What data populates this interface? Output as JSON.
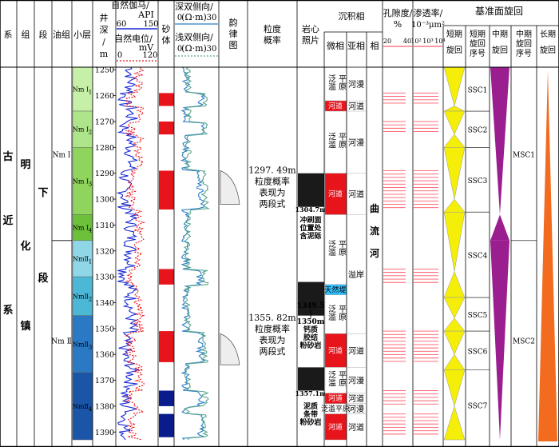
{
  "headers": {
    "xi": "系",
    "zu": "组",
    "duan": "段",
    "youzu": "油组",
    "xiaoceng": "小层",
    "jingshen": [
      "井",
      "深",
      "/",
      "m"
    ],
    "gr": [
      "自然伽马/",
      "API"
    ],
    "gr_min": "60",
    "gr_max": "150",
    "sp": [
      "自然电位/",
      "mV"
    ],
    "sp_min": "0",
    "sp_max": "120",
    "shatiti": [
      "砂",
      "体"
    ],
    "deep": [
      "深双侧向/",
      "(Ω·m)"
    ],
    "deep_min": "0",
    "deep_max": "30",
    "shallow": [
      "浅双侧向/",
      "(Ω·m)"
    ],
    "shallow_min": "0",
    "shallow_max": "30",
    "yunlv": [
      "韵",
      "律",
      "图"
    ],
    "lidu": [
      "粒度",
      "概率"
    ],
    "yanxin": [
      "岩心",
      "照片"
    ],
    "chenjixiang": "沉积相",
    "weixiang": "微相",
    "yaxiang": "亚相",
    "xiang": "相",
    "kongxidu": [
      "孔隙度/",
      "%"
    ],
    "phi_ticks": [
      "20",
      "40"
    ],
    "shentou": [
      "渗透率/",
      "10⁻³μm²"
    ],
    "perm_ticks": [
      "10²",
      "10³",
      "10⁴"
    ],
    "jizhun": "基准面旋回",
    "duanqi": [
      "短期",
      "旋回"
    ],
    "duanqi_no": [
      "短期",
      "旋回",
      "序号"
    ],
    "zhongqi": [
      "中期",
      "旋回"
    ],
    "zhongqi_no": [
      "中期",
      "旋回",
      "序号"
    ],
    "changqi": [
      "长期",
      "旋回"
    ]
  },
  "strat": {
    "xi": [
      "古",
      "近",
      "系"
    ],
    "zu": [
      "明",
      "化",
      "镇"
    ],
    "duan": [
      "下",
      "段"
    ],
    "youzu": [
      {
        "label": "Nm Ⅰ",
        "top": 1249,
        "bottom": 1316
      },
      {
        "label": "Nm Ⅱ",
        "top": 1316,
        "bottom": 1393
      }
    ],
    "layers": [
      {
        "label": "Nm Ⅰ",
        "sub": "1",
        "top": 1249,
        "bottom": 1266,
        "color": "#c6f0a8"
      },
      {
        "label": "Nm Ⅰ",
        "sub": "2",
        "top": 1266,
        "bottom": 1280,
        "color": "#aee58a"
      },
      {
        "label": "Nm Ⅰ",
        "sub": "3",
        "top": 1280,
        "bottom": 1306,
        "color": "#8fd45c"
      },
      {
        "label": "Nm Ⅰ",
        "sub": "4",
        "top": 1306,
        "bottom": 1316,
        "color": "#6cc03a"
      },
      {
        "label": "NmⅡ",
        "sub": "1",
        "top": 1316,
        "bottom": 1330,
        "color": "#8fd6e6"
      },
      {
        "label": "NmⅡ",
        "sub": "2",
        "top": 1330,
        "bottom": 1345,
        "color": "#4cb8d6"
      },
      {
        "label": "NmⅡ",
        "sub": "3",
        "top": 1345,
        "bottom": 1367,
        "color": "#2b79c4"
      },
      {
        "label": "NmⅡ",
        "sub": "4",
        "top": 1367,
        "bottom": 1393,
        "color": "#1b55a8"
      }
    ]
  },
  "depth": {
    "min": 1249,
    "max": 1393,
    "ticks": [
      1250,
      1260,
      1270,
      1280,
      1290,
      1300,
      1310,
      1320,
      1330,
      1340,
      1350,
      1360,
      1370,
      1380,
      1390
    ]
  },
  "sand": [
    {
      "top": 1259,
      "bottom": 1264,
      "color": "#e8141c"
    },
    {
      "top": 1270,
      "bottom": 1275,
      "color": "#e8141c"
    },
    {
      "top": 1289,
      "bottom": 1304,
      "color": "#e8141c"
    },
    {
      "top": 1327,
      "bottom": 1333,
      "color": "#e8141c"
    },
    {
      "top": 1351,
      "bottom": 1363,
      "color": "#e8141c"
    },
    {
      "top": 1374,
      "bottom": 1380,
      "color": "#0a1c8c"
    },
    {
      "top": 1383,
      "bottom": 1392,
      "color": "#0a1c8c"
    }
  ],
  "facies_micro": [
    {
      "label": "泛滥平原",
      "top": 1249,
      "bottom": 1262,
      "red": false
    },
    {
      "label": "河道",
      "top": 1262,
      "bottom": 1266,
      "red": true
    },
    {
      "label": "泛滥平原",
      "top": 1266,
      "bottom": 1290,
      "red": false
    },
    {
      "label": "河道",
      "top": 1290,
      "bottom": 1306,
      "red": true
    },
    {
      "label": "泛滥平原",
      "top": 1306,
      "bottom": 1333,
      "red": false
    },
    {
      "label": "天然堤",
      "top": 1333,
      "bottom": 1337,
      "red": false,
      "color": "#33c0ff"
    },
    {
      "label": "泛滥平原",
      "top": 1337,
      "bottom": 1352,
      "red": false
    },
    {
      "label": "河道",
      "top": 1352,
      "bottom": 1365,
      "red": true
    },
    {
      "label": "泛滥平原",
      "top": 1365,
      "bottom": 1375,
      "red": false
    },
    {
      "label": "河道",
      "top": 1375,
      "bottom": 1379,
      "red": true
    },
    {
      "label": "泛滥平原",
      "top": 1379,
      "bottom": 1383,
      "red": false
    },
    {
      "label": "河道",
      "top": 1383,
      "bottom": 1393,
      "red": true
    }
  ],
  "facies_sub": [
    {
      "label": "河漫",
      "top": 1249,
      "bottom": 1262
    },
    {
      "label": "河道",
      "top": 1262,
      "bottom": 1266
    },
    {
      "label": "河漫",
      "top": 1266,
      "bottom": 1290
    },
    {
      "label": "河道",
      "top": 1290,
      "bottom": 1306
    },
    {
      "label": "溢岸",
      "top": 1306,
      "bottom": 1352
    },
    {
      "label": "河道",
      "top": 1352,
      "bottom": 1365
    },
    {
      "label": "河漫",
      "top": 1365,
      "bottom": 1375
    },
    {
      "label": "河道",
      "top": 1375,
      "bottom": 1379
    },
    {
      "label": "河漫",
      "top": 1379,
      "bottom": 1383
    },
    {
      "label": "河道",
      "top": 1383,
      "bottom": 1393
    }
  ],
  "facies_main": [
    "曲",
    "流",
    "河"
  ],
  "grain_notes": [
    {
      "lines": [
        "1297. 49m",
        "粒度概率",
        "表现为",
        "两段式"
      ],
      "depth": 1290
    },
    {
      "lines": [
        "1355. 82m",
        "粒度概率",
        "表现为",
        "两段式"
      ],
      "depth": 1347
    }
  ],
  "core_notes": [
    {
      "label": "1304.7m",
      "depth": 1304
    },
    {
      "lines": [
        "冲刷面",
        "位置处",
        "含泥砾"
      ],
      "depth": 1309
    },
    {
      "lines": [
        "1349.5",
        "|",
        "1350m",
        "钙质",
        "胶结",
        "粉砂岩"
      ],
      "depth": 1342
    },
    {
      "label": "1357.1m",
      "depth": 1375
    },
    {
      "lines": [
        "泥质",
        "条带",
        "粉砂岩"
      ],
      "depth": 1381
    }
  ],
  "ssc": [
    {
      "label": "SSC1",
      "top": 1249,
      "turn": 1264,
      "bottom": 1266
    },
    {
      "label": "SSC2",
      "top": 1266,
      "turn": 1275,
      "bottom": 1280
    },
    {
      "label": "SSC3",
      "top": 1280,
      "turn": 1300,
      "bottom": 1305
    },
    {
      "label": "SSC4",
      "top": 1305,
      "turn": 1328,
      "bottom": 1338
    },
    {
      "label": "SSC5",
      "top": 1338,
      "turn": 1346,
      "bottom": 1351
    },
    {
      "label": "SSC6",
      "top": 1351,
      "turn": 1360,
      "bottom": 1366
    },
    {
      "label": "SSC7",
      "top": 1366,
      "turn": 1380,
      "bottom": 1393
    }
  ],
  "msc": [
    {
      "label": "MSC1",
      "top": 1249,
      "turn": 1306,
      "bottom": 1316
    },
    {
      "label": "MSC2",
      "top": 1316,
      "turn": 1393,
      "bottom": 1393
    }
  ],
  "colors": {
    "gr": "#1a2bd6",
    "sp": "#e8141c",
    "deep": "#2a7dc8",
    "shallow": "#5aa58d",
    "ssc": "#f4ee08",
    "msc": "#9b1e90",
    "lsc": "#f26b1f",
    "phi": "#ff5a6a"
  }
}
